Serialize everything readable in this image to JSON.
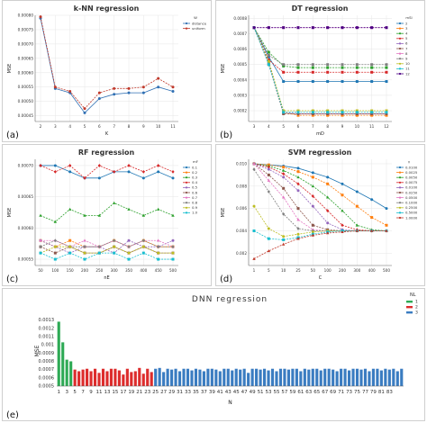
{
  "panels": [
    {
      "key": "a",
      "panel_label": "(a)",
      "title": "k-NN regression",
      "xlabel": "K",
      "ylabel": "MSE",
      "legend_title": "W",
      "ytick_fmt": 5,
      "xticks": [
        "2",
        "3",
        "4",
        "5",
        "6",
        "7",
        "8",
        "9",
        "10",
        "11"
      ],
      "yticks": [
        0.00045,
        0.0005,
        0.00055,
        0.0006,
        0.00065,
        0.0007,
        0.00075,
        0.0008
      ],
      "ylim": [
        0.00043,
        0.0008
      ],
      "markers": "circle"
    },
    {
      "key": "b",
      "panel_label": "(b)",
      "title": "DT regression",
      "xlabel": "mD",
      "ylabel": "MSE",
      "legend_title": "mSI",
      "ytick_fmt": 4,
      "xticks": [
        "3",
        "4",
        "5",
        "6",
        "7",
        "8",
        "9",
        "10",
        "11",
        "12"
      ],
      "yticks": [
        0.0002,
        0.0003,
        0.0004,
        0.0005,
        0.0006,
        0.0007,
        0.0008
      ],
      "ylim": [
        0.00013,
        0.00082
      ],
      "markers": "square"
    },
    {
      "key": "c",
      "panel_label": "(c)",
      "title": "RF regression",
      "xlabel": "nE",
      "ylabel": "MSE",
      "legend_title": "mF",
      "ytick_fmt": 5,
      "xticks": [
        "50",
        "100",
        "150",
        "200",
        "250",
        "300",
        "350",
        "400",
        "450",
        "500"
      ],
      "yticks": [
        0.00055,
        0.0006,
        0.00065,
        0.0007
      ],
      "ylim": [
        0.00054,
        0.00071
      ],
      "markers": "mixed"
    },
    {
      "key": "d",
      "panel_label": "(d)",
      "title": "SVM regression",
      "xlabel": "C",
      "ylabel": "MSE",
      "legend_title": "γ",
      "ytick_fmt": 3,
      "xticks": [
        "1",
        "5",
        "10",
        "25",
        "50",
        "100",
        "200",
        "300",
        "400",
        "500"
      ],
      "yticks": [
        0.002,
        0.004,
        0.006,
        0.008,
        0.01
      ],
      "ylim": [
        0.0009,
        0.0104
      ],
      "markers": "mixed"
    }
  ],
  "dnn": {
    "panel_label": "(e)",
    "title": "DNN regression",
    "xlabel": "N",
    "ylabel": "MSE",
    "legend_title": "NL",
    "yticks": [
      "0.0013",
      "0.0012",
      "0.0011",
      "0.001",
      "0.0009",
      "0.0008",
      "0.0007",
      "0.0006",
      "0.0005"
    ],
    "xticks": [
      "1",
      "3",
      "5",
      "7",
      "9",
      "11",
      "13",
      "15",
      "17",
      "19",
      "21",
      "23",
      "25",
      "27",
      "29",
      "31",
      "33",
      "35",
      "37",
      "39",
      "41",
      "43",
      "45",
      "47",
      "49",
      "51",
      "53",
      "55",
      "57",
      "59",
      "61",
      "63",
      "65",
      "67",
      "69",
      "71",
      "73",
      "75",
      "77",
      "79",
      "81",
      "83"
    ]
  },
  "chart_data": [
    {
      "type": "line",
      "title": "k-NN regression",
      "xlabel": "K",
      "ylabel": "MSE",
      "x": [
        2,
        3,
        4,
        5,
        6,
        7,
        8,
        9,
        10,
        11
      ],
      "ylim": [
        0.00043,
        0.0008
      ],
      "legend_title": "W",
      "series": [
        {
          "name": "distance",
          "color": "#2f6fb3",
          "values": [
            0.00079,
            0.000545,
            0.00053,
            0.00046,
            0.00051,
            0.000525,
            0.00053,
            0.00053,
            0.00055,
            0.000535
          ]
        },
        {
          "name": "uniform",
          "color": "#c0392b",
          "values": [
            0.000795,
            0.00055,
            0.000535,
            0.000475,
            0.00053,
            0.000545,
            0.000545,
            0.00055,
            0.00058,
            0.00055
          ]
        }
      ]
    },
    {
      "type": "line",
      "title": "DT regression",
      "xlabel": "mD",
      "ylabel": "MSE",
      "x": [
        3,
        4,
        5,
        6,
        7,
        8,
        9,
        10,
        11,
        12
      ],
      "ylim": [
        0.00013,
        0.00082
      ],
      "legend_title": "mSI",
      "series": [
        {
          "name": "2",
          "color": "#1f77b4",
          "values": [
            0.00074,
            0.00055,
            0.00039,
            0.00039,
            0.00039,
            0.00039,
            0.00039,
            0.00039,
            0.00039,
            0.00039
          ]
        },
        {
          "name": "3",
          "color": "#ff7f0e",
          "values": [
            0.00074,
            0.00052,
            0.00019,
            0.00017,
            0.00017,
            0.00017,
            0.00017,
            0.00017,
            0.00017,
            0.00017
          ]
        },
        {
          "name": "4",
          "color": "#2ca02c",
          "values": [
            0.00074,
            0.00058,
            0.00049,
            0.00048,
            0.00048,
            0.00048,
            0.00048,
            0.00048,
            0.00048,
            0.00048
          ]
        },
        {
          "name": "5",
          "color": "#d62728",
          "values": [
            0.00074,
            0.00053,
            0.00045,
            0.00045,
            0.00045,
            0.00045,
            0.00045,
            0.00045,
            0.00045,
            0.00045
          ]
        },
        {
          "name": "6",
          "color": "#9467bd",
          "values": [
            0.00074,
            0.00051,
            0.00019,
            0.00018,
            0.00018,
            0.00018,
            0.00018,
            0.00018,
            0.00018,
            0.00018
          ]
        },
        {
          "name": "7",
          "color": "#8c564b",
          "values": [
            0.00074,
            0.0005,
            0.00018,
            0.00018,
            0.00018,
            0.00018,
            0.00018,
            0.00018,
            0.00018,
            0.00018
          ]
        },
        {
          "name": "8",
          "color": "#e377c2",
          "values": [
            0.00074,
            0.00074,
            0.00074,
            0.00074,
            0.00074,
            0.00074,
            0.00074,
            0.00074,
            0.00074,
            0.00074
          ]
        },
        {
          "name": "9",
          "color": "#7f7f7f",
          "values": [
            0.00074,
            0.00056,
            0.0005,
            0.0005,
            0.0005,
            0.0005,
            0.0005,
            0.0005,
            0.0005,
            0.0005
          ]
        },
        {
          "name": "10",
          "color": "#bcbd22",
          "values": [
            0.00074,
            0.00052,
            0.0002,
            0.0002,
            0.0002,
            0.0002,
            0.0002,
            0.0002,
            0.0002,
            0.0002
          ]
        },
        {
          "name": "11",
          "color": "#17becf",
          "values": [
            0.00074,
            0.0005,
            0.00019,
            0.00019,
            0.00019,
            0.00019,
            0.00019,
            0.00019,
            0.00019,
            0.00019
          ]
        },
        {
          "name": "12",
          "color": "#4b0082",
          "values": [
            0.00074,
            0.00074,
            0.00074,
            0.00074,
            0.00074,
            0.00074,
            0.00074,
            0.00074,
            0.00074,
            0.00074
          ]
        }
      ]
    },
    {
      "type": "line",
      "title": "RF regression",
      "xlabel": "nE",
      "ylabel": "MSE",
      "x": [
        50,
        100,
        150,
        200,
        250,
        300,
        350,
        400,
        450,
        500
      ],
      "ylim": [
        0.00054,
        0.00071
      ],
      "legend_title": "mF",
      "series": [
        {
          "name": "0.1",
          "color": "#1f77b4",
          "values": [
            0.0007,
            0.0007,
            0.00069,
            0.00068,
            0.00068,
            0.00069,
            0.00069,
            0.00068,
            0.00069,
            0.00068
          ]
        },
        {
          "name": "0.2",
          "color": "#ff7f0e",
          "values": [
            0.00058,
            0.00057,
            0.00058,
            0.00057,
            0.00057,
            0.00058,
            0.00057,
            0.00058,
            0.00057,
            0.00057
          ]
        },
        {
          "name": "0.3",
          "color": "#2ca02c",
          "values": [
            0.00062,
            0.00061,
            0.00063,
            0.00062,
            0.00062,
            0.00064,
            0.00063,
            0.00062,
            0.00063,
            0.00062
          ]
        },
        {
          "name": "0.4",
          "color": "#d62728",
          "values": [
            0.0007,
            0.00069,
            0.0007,
            0.00068,
            0.0007,
            0.00069,
            0.0007,
            0.00069,
            0.0007,
            0.00069
          ]
        },
        {
          "name": "0.5",
          "color": "#9467bd",
          "values": [
            0.00058,
            0.00057,
            0.00056,
            0.00057,
            0.00057,
            0.00056,
            0.00058,
            0.00057,
            0.00057,
            0.00058
          ]
        },
        {
          "name": "0.6",
          "color": "#8c564b",
          "values": [
            0.00057,
            0.00056,
            0.00057,
            0.00056,
            0.00056,
            0.00057,
            0.00056,
            0.00057,
            0.00056,
            0.00056
          ]
        },
        {
          "name": "0.7",
          "color": "#e377c2",
          "values": [
            0.00058,
            0.00058,
            0.00057,
            0.00058,
            0.00057,
            0.00058,
            0.00057,
            0.00058,
            0.00058,
            0.00057
          ]
        },
        {
          "name": "0.8",
          "color": "#7f7f7f",
          "values": [
            0.00057,
            0.00058,
            0.00057,
            0.00057,
            0.00057,
            0.00058,
            0.00057,
            0.00058,
            0.00057,
            0.00057
          ]
        },
        {
          "name": "0.9",
          "color": "#bcbd22",
          "values": [
            0.00056,
            0.00057,
            0.00057,
            0.00056,
            0.00056,
            0.00057,
            0.00056,
            0.00057,
            0.00056,
            0.00056
          ]
        },
        {
          "name": "1.0",
          "color": "#17becf",
          "values": [
            0.00056,
            0.00055,
            0.00056,
            0.00055,
            0.00056,
            0.00056,
            0.00055,
            0.00056,
            0.00055,
            0.00055
          ]
        }
      ]
    },
    {
      "type": "line",
      "title": "SVM regression",
      "xlabel": "C",
      "ylabel": "MSE",
      "x": [
        1,
        5,
        10,
        25,
        50,
        100,
        200,
        300,
        400,
        500
      ],
      "ylim": [
        0.0009,
        0.0104
      ],
      "legend_title": "γ",
      "series": [
        {
          "name": "0.0100",
          "color": "#1f77b4",
          "values": [
            0.01,
            0.0099,
            0.0098,
            0.0096,
            0.0092,
            0.0088,
            0.0082,
            0.0075,
            0.0068,
            0.006
          ]
        },
        {
          "name": "0.0025",
          "color": "#ff7f0e",
          "values": [
            0.01,
            0.0099,
            0.0097,
            0.0093,
            0.0088,
            0.0082,
            0.0072,
            0.0062,
            0.0052,
            0.0045
          ]
        },
        {
          "name": "0.0050",
          "color": "#2ca02c",
          "values": [
            0.01,
            0.0098,
            0.0094,
            0.0088,
            0.008,
            0.007,
            0.0058,
            0.0045,
            0.0041,
            0.004
          ]
        },
        {
          "name": "0.0075",
          "color": "#d62728",
          "values": [
            0.01,
            0.0097,
            0.0091,
            0.0082,
            0.0071,
            0.0058,
            0.0045,
            0.0041,
            0.004,
            0.004
          ]
        },
        {
          "name": "0.0100",
          "color": "#9467bd",
          "values": [
            0.01,
            0.0095,
            0.0088,
            0.0076,
            0.0062,
            0.0047,
            0.0041,
            0.004,
            0.004,
            0.004
          ]
        },
        {
          "name": "0.0250",
          "color": "#8c564b",
          "values": [
            0.01,
            0.009,
            0.0078,
            0.006,
            0.0045,
            0.0041,
            0.004,
            0.004,
            0.004,
            0.004
          ]
        },
        {
          "name": "0.0500",
          "color": "#e377c2",
          "values": [
            0.01,
            0.0085,
            0.007,
            0.005,
            0.0041,
            0.004,
            0.004,
            0.004,
            0.004,
            0.004
          ]
        },
        {
          "name": "0.1000",
          "color": "#7f7f7f",
          "values": [
            0.0095,
            0.0075,
            0.0055,
            0.0042,
            0.004,
            0.004,
            0.004,
            0.004,
            0.004,
            0.004
          ]
        },
        {
          "name": "0.2500",
          "color": "#bcbd22",
          "values": [
            0.0062,
            0.0042,
            0.0035,
            0.0037,
            0.0039,
            0.004,
            0.004,
            0.004,
            0.004,
            0.004
          ]
        },
        {
          "name": "0.5000",
          "color": "#17becf",
          "values": [
            0.004,
            0.0033,
            0.0032,
            0.0034,
            0.0037,
            0.0039,
            0.004,
            0.004,
            0.004,
            0.004
          ]
        },
        {
          "name": "1.0000",
          "color": "#c0392b",
          "values": [
            0.0015,
            0.0022,
            0.0028,
            0.0033,
            0.0036,
            0.0038,
            0.0039,
            0.004,
            0.004,
            0.004
          ]
        }
      ]
    },
    {
      "type": "bar",
      "title": "DNN regression",
      "xlabel": "N",
      "ylabel": "MSE",
      "ylim": [
        0.0005,
        0.00135
      ],
      "legend_title": "NL",
      "series": [
        {
          "name": "1",
          "color": "#2eaa55",
          "values": [
            0.00128,
            0.00103,
            0.00082,
            0.0008
          ]
        },
        {
          "name": "2",
          "color": "#dd2c2c",
          "values": [
            0.0007,
            0.00068,
            0.0007,
            0.00071,
            0.00068,
            0.00071,
            0.00066,
            0.00071,
            0.00068,
            0.00071,
            0.00071,
            0.00069,
            0.00064,
            0.00071,
            0.00067,
            0.00068,
            0.00072,
            0.00065,
            0.00071,
            0.00067
          ]
        },
        {
          "name": "3",
          "color": "#3a7cc1",
          "values": [
            0.00071,
            0.00072,
            0.00067,
            0.00071,
            0.0007,
            0.00071,
            0.00068,
            0.00071,
            0.00071,
            0.00069,
            0.00071,
            0.0007,
            0.00068,
            0.00071,
            0.00071,
            0.0007,
            0.00068,
            0.00071,
            0.00071,
            0.00069,
            0.00071,
            0.0007,
            0.00071,
            0.00066,
            0.00071,
            0.00071,
            0.0007,
            0.00071,
            0.00069,
            0.00071,
            0.00068,
            0.00071,
            0.00071,
            0.0007,
            0.00071,
            0.00071,
            0.00068,
            0.00071,
            0.0007,
            0.00071,
            0.00071,
            0.00069,
            0.00071,
            0.00071,
            0.0007,
            0.00068,
            0.00071,
            0.00071,
            0.00069,
            0.00071,
            0.00071,
            0.0007,
            0.00071,
            0.00068,
            0.00071,
            0.00071,
            0.00069,
            0.00071,
            0.0007,
            0.00071,
            0.00068,
            0.00071
          ]
        }
      ]
    }
  ]
}
